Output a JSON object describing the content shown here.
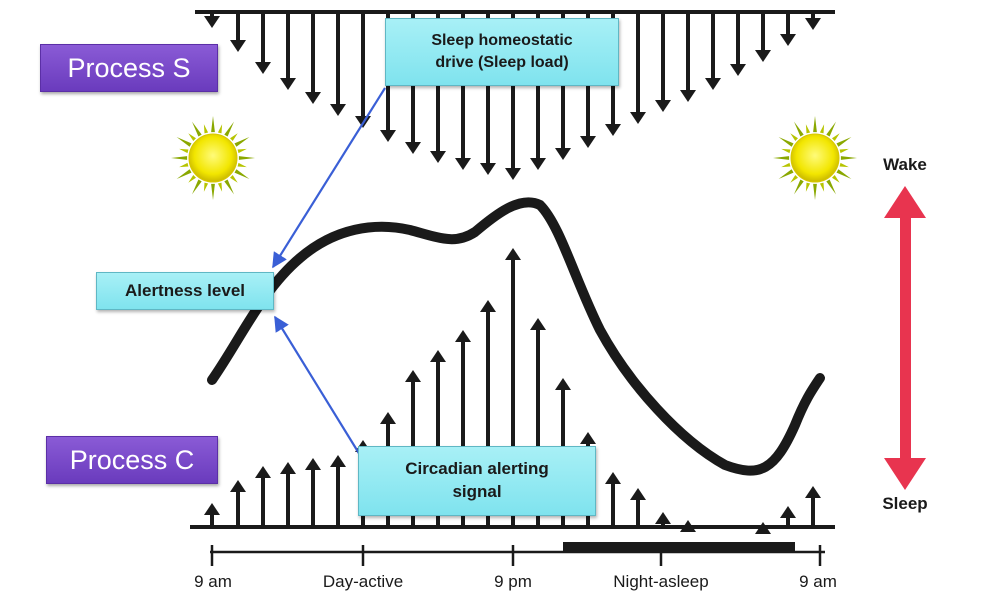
{
  "process_s": {
    "label": "Process S"
  },
  "process_c": {
    "label": "Process C"
  },
  "callouts": {
    "sleep_drive_line1": "Sleep homeostatic",
    "sleep_drive_line2": "drive (Sleep load)",
    "alertness": "Alertness level",
    "circadian_line1": "Circadian alerting",
    "circadian_line2": "signal"
  },
  "axis": {
    "ticks": [
      "9 am",
      "Day-active",
      "9 pm",
      "Night-asleep",
      "9 am"
    ]
  },
  "state_scale": {
    "wake": "Wake",
    "sleep": "Sleep"
  },
  "icons": [
    "sun-icon",
    "sun-icon"
  ],
  "colors": {
    "arrow_dark": "#1a1a1a",
    "pointer_blue": "#3a5fd6",
    "wake_sleep_arrow": "#e8344f",
    "process_label_bg": "#7a4bd0",
    "callout_bg": "#8be6f0",
    "sun_yellow": "#f2e600",
    "sun_ray_green": "#8aa800"
  }
}
